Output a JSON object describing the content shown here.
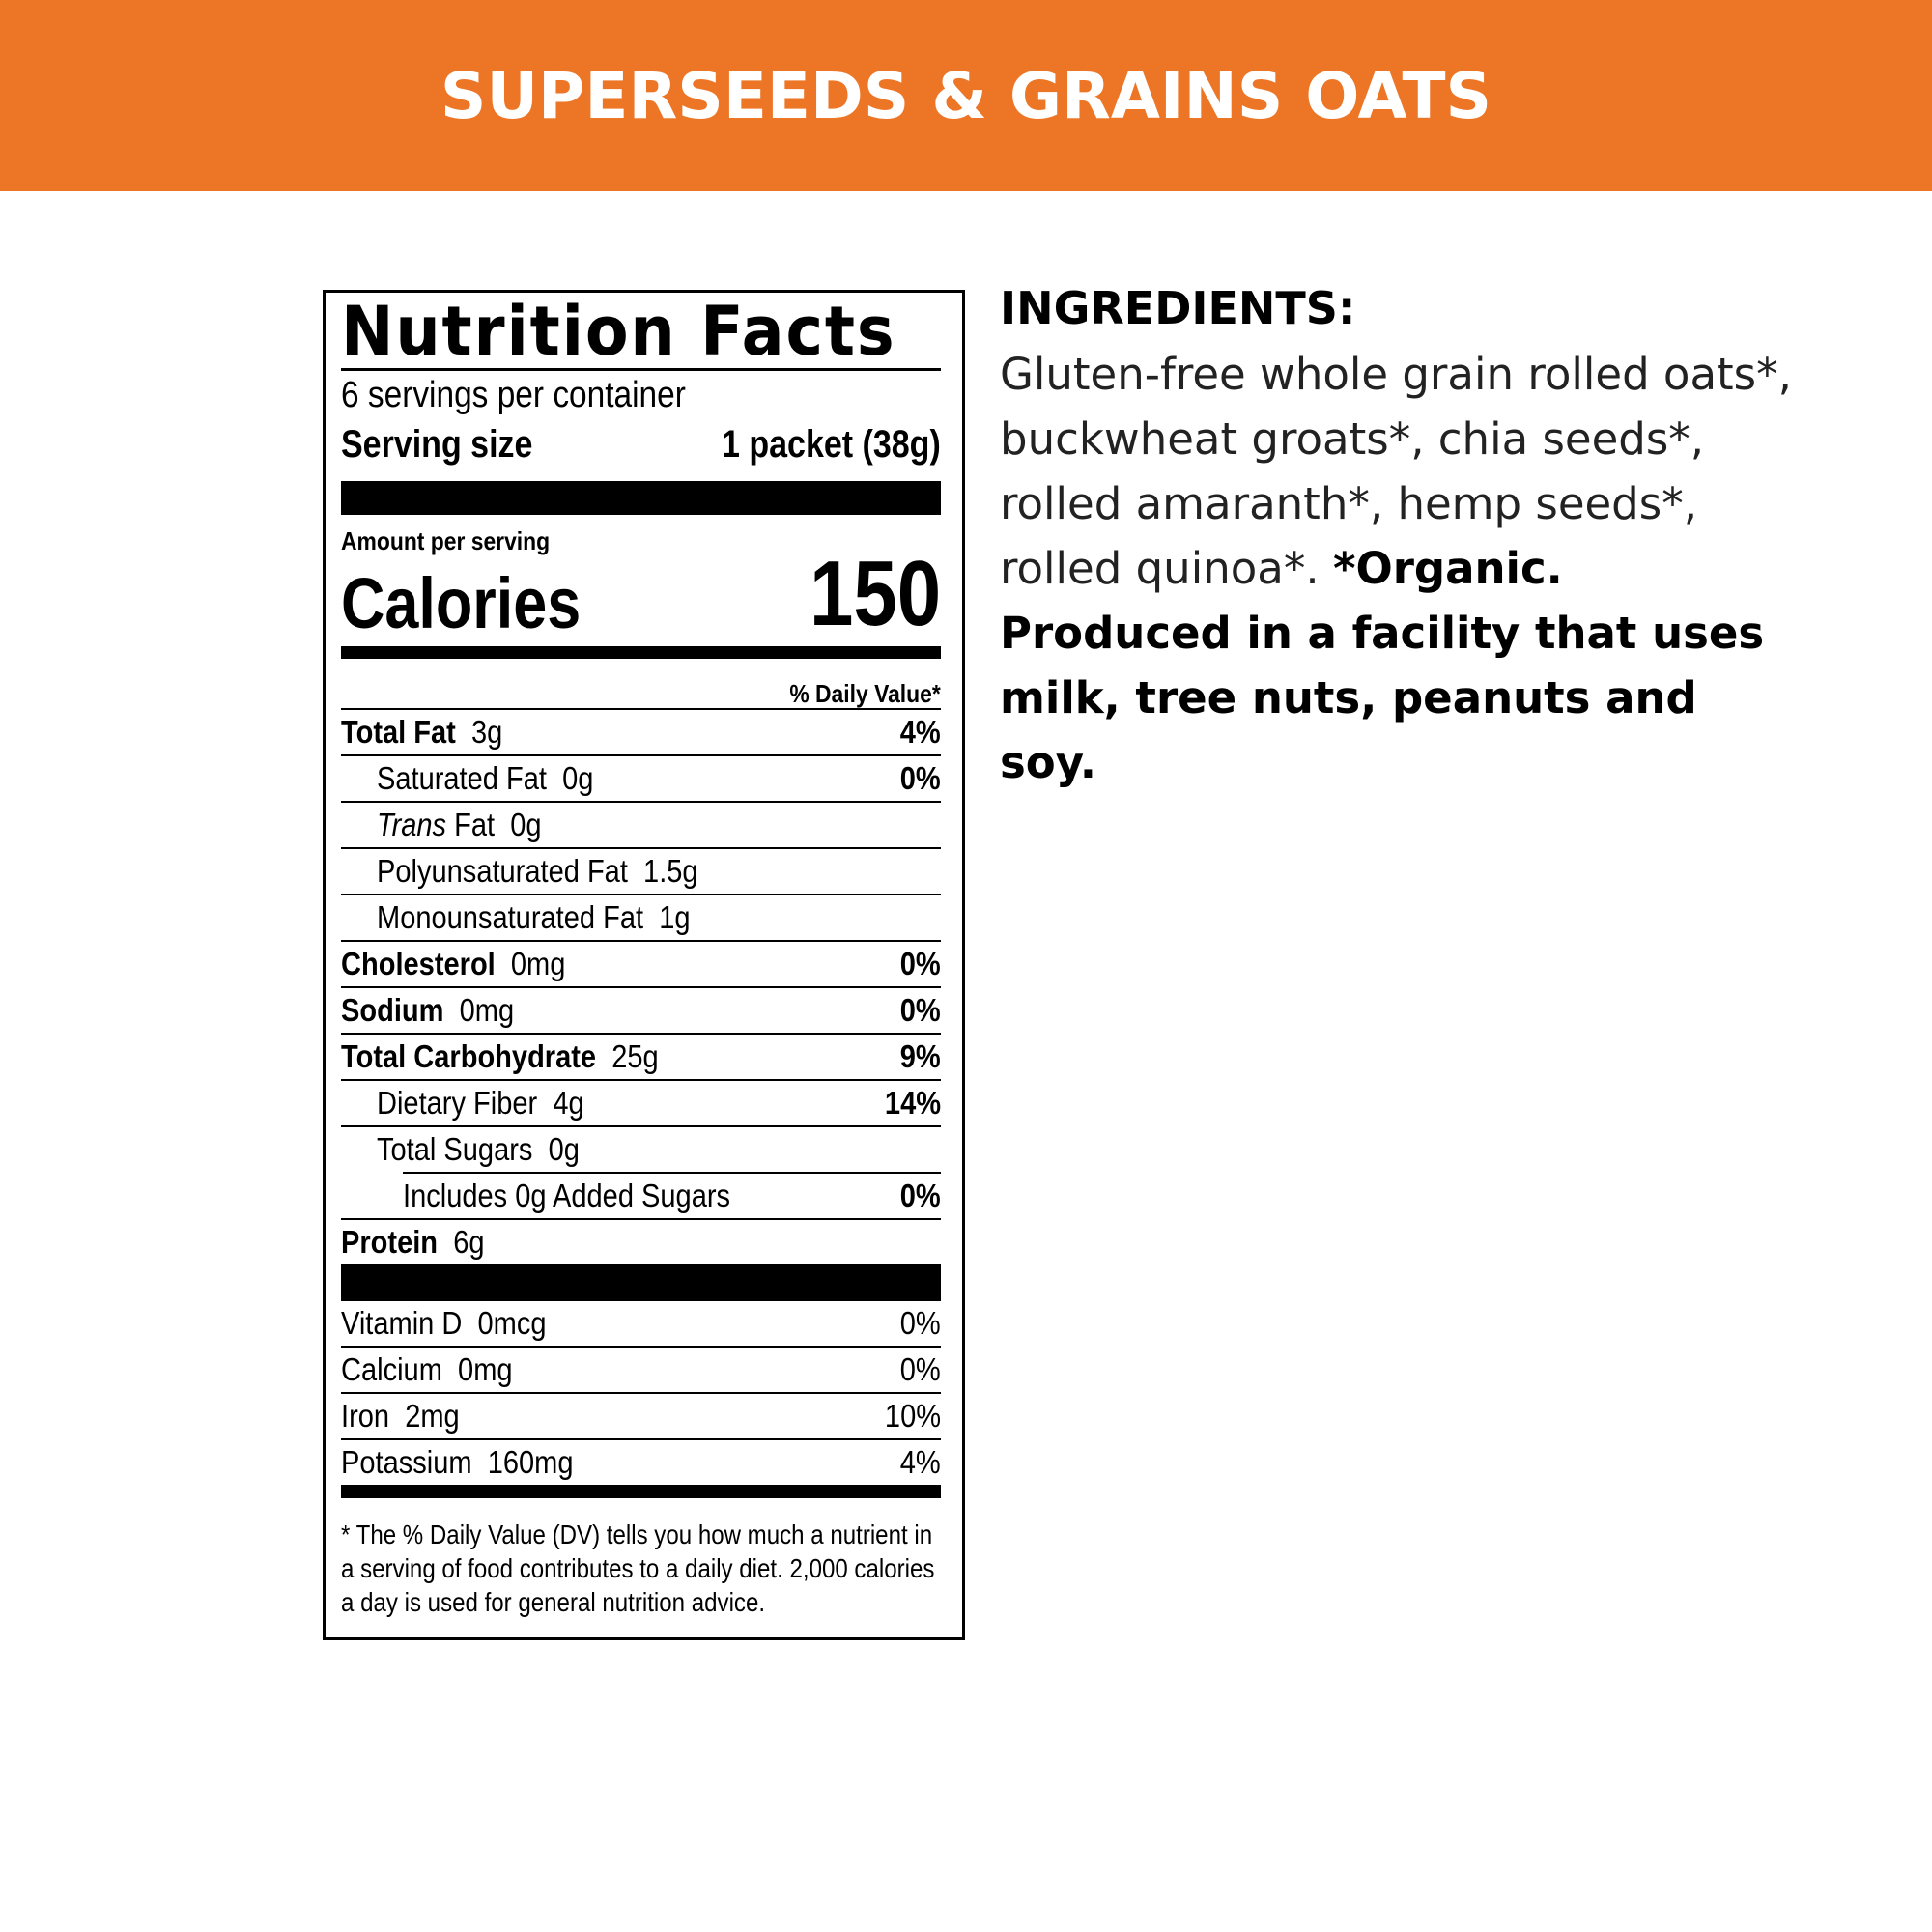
{
  "banner": {
    "title": "SUPERSEEDS & GRAINS OATS",
    "color": "#ED7526"
  },
  "nutrition": {
    "title": "Nutrition Facts",
    "servings": "6 servings per container",
    "serving_size_label": "Serving size",
    "serving_size_value": "1 packet (38g)",
    "amount_per_serving": "Amount per serving",
    "calories_label": "Calories",
    "calories_value": "150",
    "dv_header": "% Daily Value*",
    "nutrients": [
      {
        "name": "Total Fat",
        "amount": "3g",
        "dv": "4%"
      },
      {
        "name": "Saturated Fat",
        "amount": "0g",
        "dv": "0%"
      },
      {
        "name": "Trans",
        "name_suffix": "Fat",
        "amount": "0g",
        "dv": ""
      },
      {
        "name": "Polyunsaturated Fat",
        "amount": "1.5g",
        "dv": ""
      },
      {
        "name": "Monounsaturated Fat",
        "amount": "1g",
        "dv": ""
      },
      {
        "name": "Cholesterol",
        "amount": "0mg",
        "dv": "0%"
      },
      {
        "name": "Sodium",
        "amount": "0mg",
        "dv": "0%"
      },
      {
        "name": "Total Carbohydrate",
        "amount": "25g",
        "dv": "9%"
      },
      {
        "name": "Dietary Fiber",
        "amount": "4g",
        "dv": "14%"
      },
      {
        "name": "Total Sugars",
        "amount": "0g",
        "dv": ""
      },
      {
        "name": "Includes 0g Added Sugars",
        "amount": "",
        "dv": "0%"
      },
      {
        "name": "Protein",
        "amount": "6g",
        "dv": ""
      }
    ],
    "vitamins": [
      {
        "name": "Vitamin D",
        "amount": "0mcg",
        "dv": "0%"
      },
      {
        "name": "Calcium",
        "amount": "0mg",
        "dv": "0%"
      },
      {
        "name": "Iron",
        "amount": "2mg",
        "dv": "10%"
      },
      {
        "name": "Potassium",
        "amount": "160mg",
        "dv": "4%"
      }
    ],
    "footnote": "* The % Daily Value (DV) tells you how much a nutrient in a serving of food contributes to a daily diet. 2,000 calories a day is used for general nutrition advice."
  },
  "ingredients": {
    "heading": "INGREDIENTS:",
    "text": "Gluten-free whole grain rolled oats*, buckwheat groats*, chia seeds*, rolled amaranth*, hemp seeds*, rolled quinoa*. ",
    "bold_text": "*Organic. Produced in a facility that uses milk, tree nuts, peanuts and soy."
  }
}
